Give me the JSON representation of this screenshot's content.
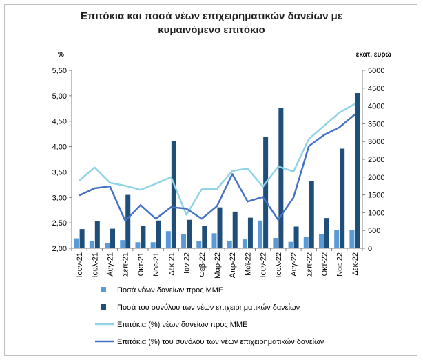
{
  "chart_data": {
    "type": "bar",
    "title_line1": "Επιτόκια και ποσά νέων επιχειρηματικών δανείων με",
    "title_line2": "κυμαινόμενο επιτόκιο",
    "ylabel_left": "%",
    "ylabel_right": "εκατ. ευρώ",
    "ylim_left": [
      2.0,
      5.5
    ],
    "ylim_right": [
      0,
      5000
    ],
    "yticks_left": [
      "2,00",
      "2,50",
      "3,00",
      "3,50",
      "4,00",
      "4,50",
      "5,00",
      "5,50"
    ],
    "yticks_right": [
      "0",
      "500",
      "1000",
      "1500",
      "2000",
      "2500",
      "3000",
      "3500",
      "4000",
      "4500",
      "5000"
    ],
    "categories": [
      "Ιουν-21",
      "Ιουλ-21",
      "Αυγ-21",
      "Σεπ-21",
      "Οκτ-21",
      "Νοε-21",
      "Δεκ-21",
      "Ιαν-22",
      "Φεβ-22",
      "Μαρ-22",
      "Απρ-22",
      "Μαϊ-22",
      "Ιουν-22",
      "Ιουλ-22",
      "Αυγ-22",
      "Σεπ-22",
      "Οκτ-22",
      "Νοε-22",
      "Δεκ-22"
    ],
    "series": [
      {
        "name": "Ποσά νέων δανείων προς ΜΜΕ",
        "kind": "bar",
        "axis": "right",
        "color": "#5b9bd5",
        "values": [
          280,
          200,
          150,
          230,
          170,
          170,
          480,
          400,
          200,
          420,
          200,
          250,
          780,
          290,
          180,
          310,
          400,
          520,
          510
        ]
      },
      {
        "name": "Ποσά του συνόλου των νέων επιχειρηματικών δανείων",
        "kind": "bar",
        "axis": "right",
        "color": "#1f4e79",
        "values": [
          540,
          760,
          550,
          1500,
          640,
          780,
          3010,
          800,
          630,
          1150,
          1030,
          860,
          3120,
          3950,
          610,
          1880,
          850,
          2800,
          4360
        ]
      },
      {
        "name": "Επιτόκια (%) νέων δανείων προς ΜΜΕ",
        "kind": "line",
        "axis": "left",
        "color": "#8fd3e6",
        "values": [
          3.33,
          3.59,
          3.29,
          3.23,
          3.15,
          3.27,
          3.4,
          2.66,
          3.16,
          3.17,
          3.52,
          3.57,
          3.21,
          3.61,
          3.51,
          4.15,
          4.41,
          4.67,
          4.84
        ]
      },
      {
        "name": "Επιτόκια (%) του συνόλου των νέων επιχειρηματικών δανείων",
        "kind": "line",
        "axis": "left",
        "color": "#4472c4",
        "values": [
          3.04,
          3.18,
          3.22,
          2.54,
          2.85,
          2.58,
          2.81,
          2.78,
          2.58,
          2.83,
          3.46,
          2.92,
          3.01,
          2.56,
          3.0,
          4.01,
          4.23,
          4.38,
          4.63
        ]
      }
    ],
    "legend_position": "bottom",
    "grid": false
  }
}
